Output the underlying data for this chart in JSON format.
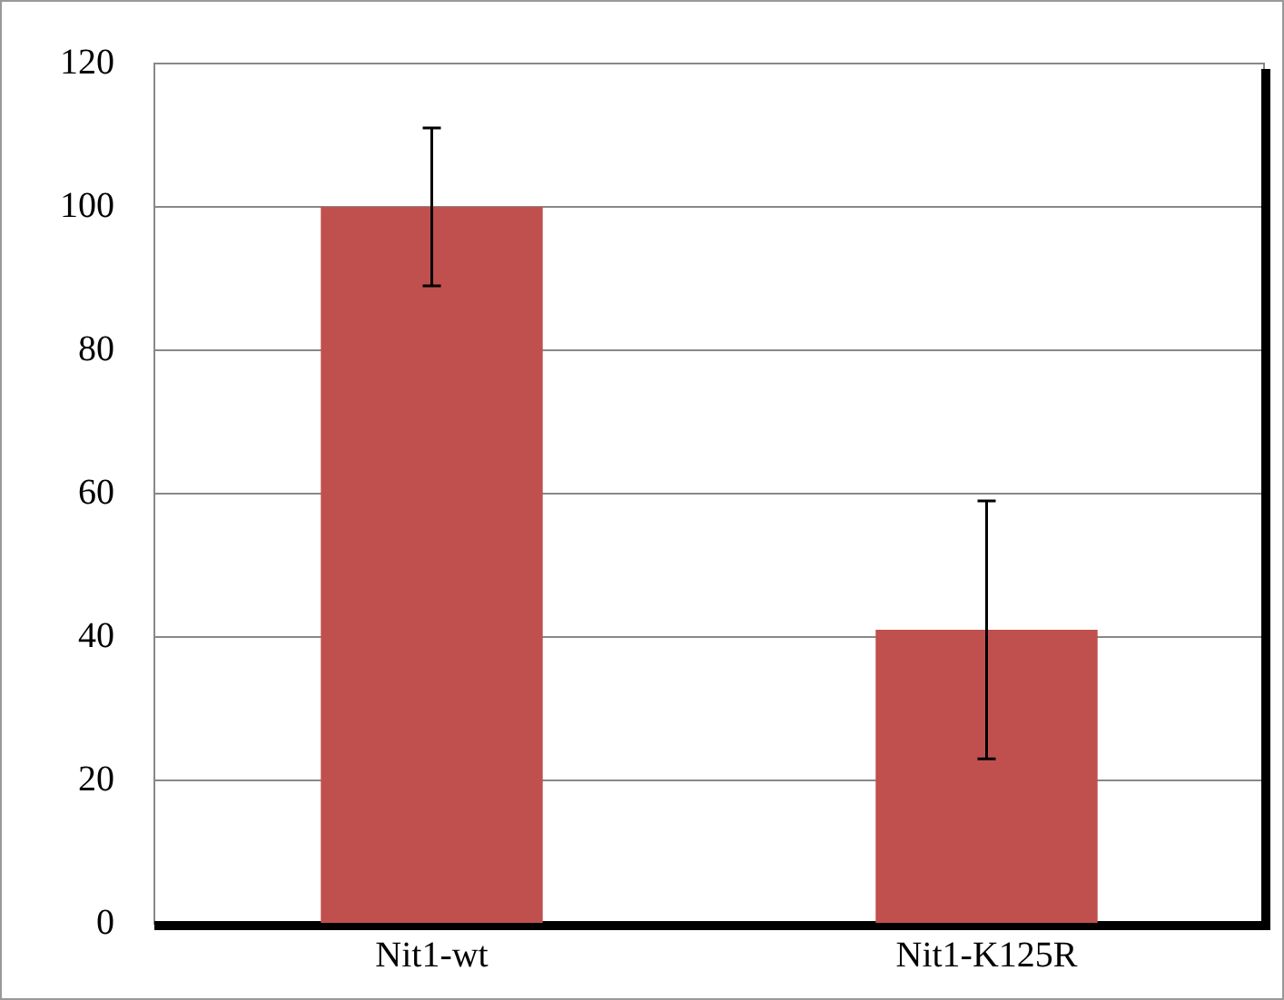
{
  "chart_data": {
    "type": "bar",
    "categories": [
      "Nit1-wt",
      "Nit1-K125R"
    ],
    "values": [
      100,
      41
    ],
    "errors": [
      [
        89,
        111
      ],
      [
        23,
        59
      ]
    ],
    "color": "#c0504d",
    "ylim": [
      0,
      120
    ],
    "yticks": [
      0,
      20,
      40,
      60,
      80,
      100,
      120
    ],
    "grid": "y",
    "legend": false
  }
}
